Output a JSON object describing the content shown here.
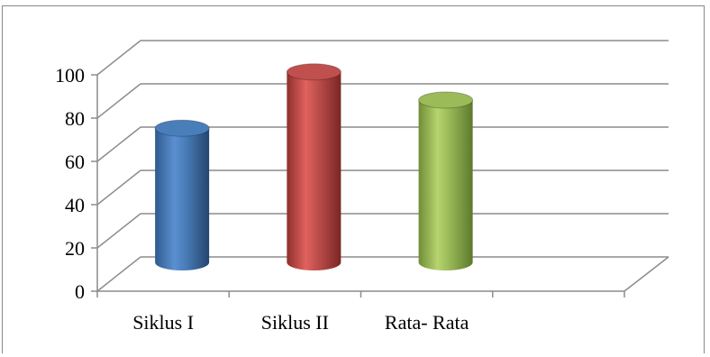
{
  "chart_data": {
    "type": "bar",
    "style": "3d-cylinder",
    "categories": [
      "Siklus I",
      "Siklus II",
      "Rata- Rata"
    ],
    "values": [
      62,
      88,
      75
    ],
    "series_colors": [
      "#4a7ebb",
      "#c0504d",
      "#9bbb59"
    ],
    "title": "",
    "xlabel": "",
    "ylabel": "",
    "ylim": [
      0,
      100
    ],
    "yticks": [
      "0",
      "20",
      "40",
      "60",
      "80",
      "100"
    ],
    "grid": true,
    "legend": "none"
  }
}
